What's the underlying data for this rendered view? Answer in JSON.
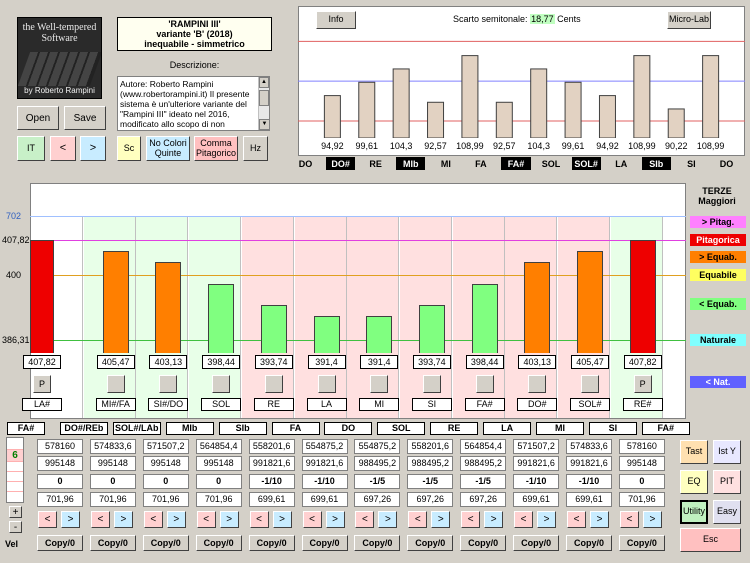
{
  "logo": {
    "line1": "the Well-tempered",
    "line2": "Software",
    "author": "by Roberto Rampini"
  },
  "title": {
    "name": "'RAMPINI III'",
    "variant": "variante 'B' (2018)",
    "type": "inequabile - simmetrico"
  },
  "description_label": "Descrizione:",
  "description_text": "Autore: Roberto Rampini (www.robertorampini.it) Il presente sistema è un'ulteriore variante del \"Rampini III\" ideato nel 2016, modificato allo scopo di non",
  "buttons": {
    "open": "Open",
    "save": "Save",
    "it": "IT",
    "prev": "<",
    "next": ">",
    "sc": "Sc",
    "no_colori": "No Colori Quinte",
    "comma": "Comma Pitagorico",
    "hz": "Hz",
    "info": "Info",
    "microlab": "Micro-Lab",
    "tast": "Tast",
    "isty": "Ist Y",
    "eq": "EQ",
    "pit": "PIT",
    "utility": "Utility",
    "easy": "Easy",
    "esc": "Esc",
    "plus": "+",
    "minus": "-"
  },
  "semitone": {
    "label": "Scarto semitonale:",
    "value": "18,77",
    "unit": "Cents"
  },
  "cents_chart": {
    "values": [
      94.92,
      99.61,
      104.3,
      92.57,
      108.99,
      92.57,
      104.3,
      99.61,
      94.92,
      108.99,
      90.22,
      108.99
    ],
    "labels": [
      "94,92",
      "99,61",
      "104,3",
      "92,57",
      "108,99",
      "92,57",
      "104,3",
      "99,61",
      "94,92",
      "108,99",
      "90,22",
      "108,99"
    ],
    "lines": [
      114,
      100,
      86
    ]
  },
  "note_names": [
    {
      "t": "DO",
      "dark": false
    },
    {
      "t": "DO#",
      "dark": true
    },
    {
      "t": "RE",
      "dark": false
    },
    {
      "t": "MIb",
      "dark": true
    },
    {
      "t": "MI",
      "dark": false
    },
    {
      "t": "FA",
      "dark": false
    },
    {
      "t": "FA#",
      "dark": true
    },
    {
      "t": "SOL",
      "dark": false
    },
    {
      "t": "SOL#",
      "dark": true
    },
    {
      "t": "LA",
      "dark": false
    },
    {
      "t": "SIb",
      "dark": true
    },
    {
      "t": "SI",
      "dark": false
    },
    {
      "t": "DO",
      "dark": false
    }
  ],
  "thirds": {
    "title1": "TERZE",
    "title2": "Maggiori",
    "axis": {
      "a702": "702",
      "a407": "407,82",
      "a400": "400",
      "a386": "386,31"
    },
    "legend": [
      "> Pitag.",
      "Pitagorica",
      "> Equab.",
      "Equabile",
      "< Equab.",
      "Naturale",
      "< Nat."
    ],
    "values": [
      407.82,
      405.47,
      403.13,
      398.44,
      393.74,
      391.4,
      391.4,
      393.74,
      398.44,
      403.13,
      405.47,
      407.82
    ],
    "labels": [
      "407,82",
      "405,47",
      "403,13",
      "398,44",
      "393,74",
      "391,4",
      "391,4",
      "393,74",
      "398,44",
      "403,13",
      "405,47",
      "407,82"
    ],
    "bar_colors": [
      "#ee0000",
      "#ff7f00",
      "#ff7f00",
      "#80ff80",
      "#80ff80",
      "#80ff80",
      "#80ff80",
      "#80ff80",
      "#80ff80",
      "#ff7f00",
      "#ff7f00",
      "#ee0000"
    ],
    "bg_colors": [
      "#ffffff",
      "#e8ffe8",
      "#e8ffe8",
      "#e8ffe8",
      "#ffe0e0",
      "#ffe0e0",
      "#ffe0e0",
      "#ffe0e0",
      "#ffe0e0",
      "#ffe0e0",
      "#ffe0e0",
      "#e8ffe8"
    ],
    "markers": [
      "P",
      "",
      "",
      "",
      "",
      "",
      "",
      "",
      "",
      "",
      "",
      "P"
    ],
    "names": [
      "LA#",
      "MI#/FA",
      "SI#/DO",
      "SOL",
      "RE",
      "LA",
      "MI",
      "SI",
      "FA#",
      "DO#",
      "SOL#",
      "RE#"
    ]
  },
  "table": {
    "headers": [
      "FA#",
      "DO#/REb",
      "SOL#/LAb",
      "MIb",
      "SIb",
      "FA",
      "DO",
      "SOL",
      "RE",
      "LA",
      "MI",
      "SI",
      "FA#"
    ],
    "row1": [
      "578160",
      "574833,6",
      "571507,2",
      "564854,4",
      "558201,6",
      "554875,2",
      "554875,2",
      "558201,6",
      "564854,4",
      "571507,2",
      "574833,6",
      "578160"
    ],
    "row2": [
      "995148",
      "995148",
      "995148",
      "995148",
      "991821,6",
      "991821,6",
      "988495,2",
      "988495,2",
      "988495,2",
      "991821,6",
      "991821,6",
      "995148"
    ],
    "row3": [
      "0",
      "0",
      "0",
      "0",
      "-1/10",
      "-1/10",
      "-1/5",
      "-1/5",
      "-1/5",
      "-1/10",
      "-1/10",
      "0"
    ],
    "row4": [
      "701,96",
      "701,96",
      "701,96",
      "701,96",
      "699,61",
      "699,61",
      "697,26",
      "697,26",
      "697,26",
      "699,61",
      "699,61",
      "701,96"
    ],
    "copy": "Copy/0",
    "left": "<",
    "right": ">",
    "side_num": "6",
    "vel": "Vel"
  }
}
